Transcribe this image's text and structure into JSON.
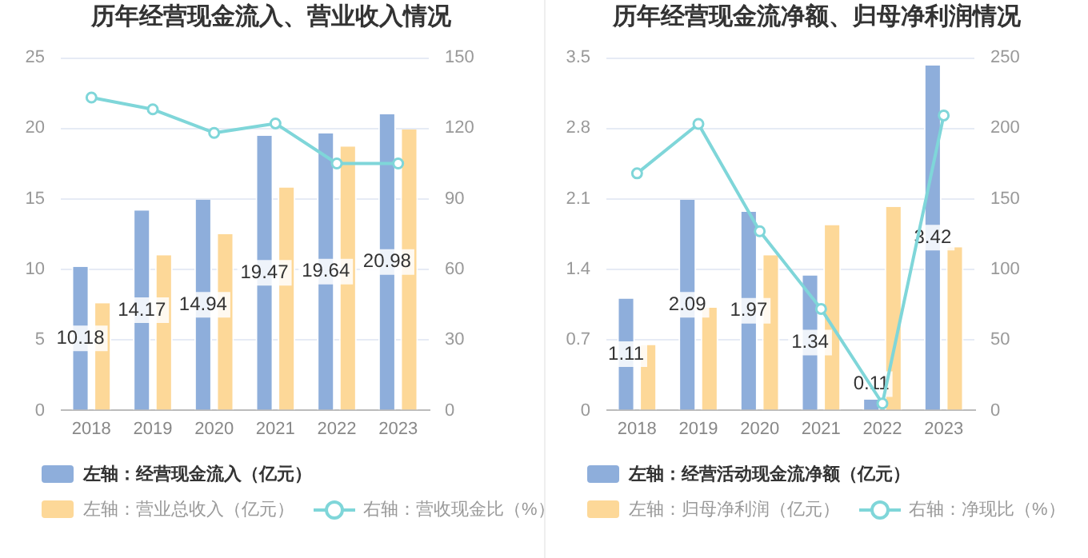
{
  "chart_data": [
    {
      "type": "bar",
      "title": "历年经营现金流入、营业收入情况",
      "categories": [
        "2018",
        "2019",
        "2020",
        "2021",
        "2022",
        "2023"
      ],
      "series": [
        {
          "name": "左轴：经营现金流入（亿元）",
          "color": "#8eaedb",
          "values": [
            10.18,
            14.17,
            14.94,
            19.47,
            19.64,
            20.98
          ],
          "value_labels": [
            "10.18",
            "14.17",
            "14.94",
            "19.47",
            "19.64",
            "20.98"
          ]
        },
        {
          "name": "左轴：营业总收入（亿元）",
          "color": "#fdd898",
          "values": [
            7.6,
            11,
            12.5,
            15.8,
            18.7,
            19.9
          ]
        },
        {
          "name": "右轴：营收现金比（%）",
          "type": "line",
          "axis": "y2",
          "color": "#7fd6d9",
          "values": [
            133,
            128,
            118,
            122,
            105,
            105
          ]
        }
      ],
      "ylim": [
        0,
        25
      ],
      "yticks": [
        0,
        5,
        10,
        15,
        20,
        25
      ],
      "y2lim": [
        0,
        150
      ],
      "y2ticks": [
        0,
        30,
        60,
        90,
        120,
        150
      ],
      "grid": "y",
      "legend": "bottom",
      "marker": "circle"
    },
    {
      "type": "bar",
      "title": "历年经营现金流净额、归母净利润情况",
      "categories": [
        "2018",
        "2019",
        "2020",
        "2021",
        "2022",
        "2023"
      ],
      "series": [
        {
          "name": "左轴：经营活动现金流净额（亿元）",
          "color": "#8eaedb",
          "values": [
            1.11,
            2.09,
            1.97,
            1.34,
            0.11,
            3.42
          ],
          "value_labels": [
            "1.11",
            "2.09",
            "1.97",
            "1.34",
            "0.11",
            "3.42"
          ]
        },
        {
          "name": "左轴：归母净利润（亿元）",
          "color": "#fdd898",
          "values": [
            0.65,
            1.02,
            1.54,
            1.84,
            2.02,
            1.62
          ]
        },
        {
          "name": "右轴：净现比（%）",
          "type": "line",
          "axis": "y2",
          "color": "#7fd6d9",
          "values": [
            168,
            203,
            127,
            72,
            5,
            209
          ]
        }
      ],
      "ylim": [
        0,
        3.5
      ],
      "yticks": [
        0,
        0.7,
        1.4,
        2.1,
        2.8,
        3.5
      ],
      "y2lim": [
        0,
        250
      ],
      "y2ticks": [
        0,
        50,
        100,
        150,
        200,
        250
      ],
      "grid": "y",
      "legend": "bottom",
      "marker": "circle"
    }
  ]
}
